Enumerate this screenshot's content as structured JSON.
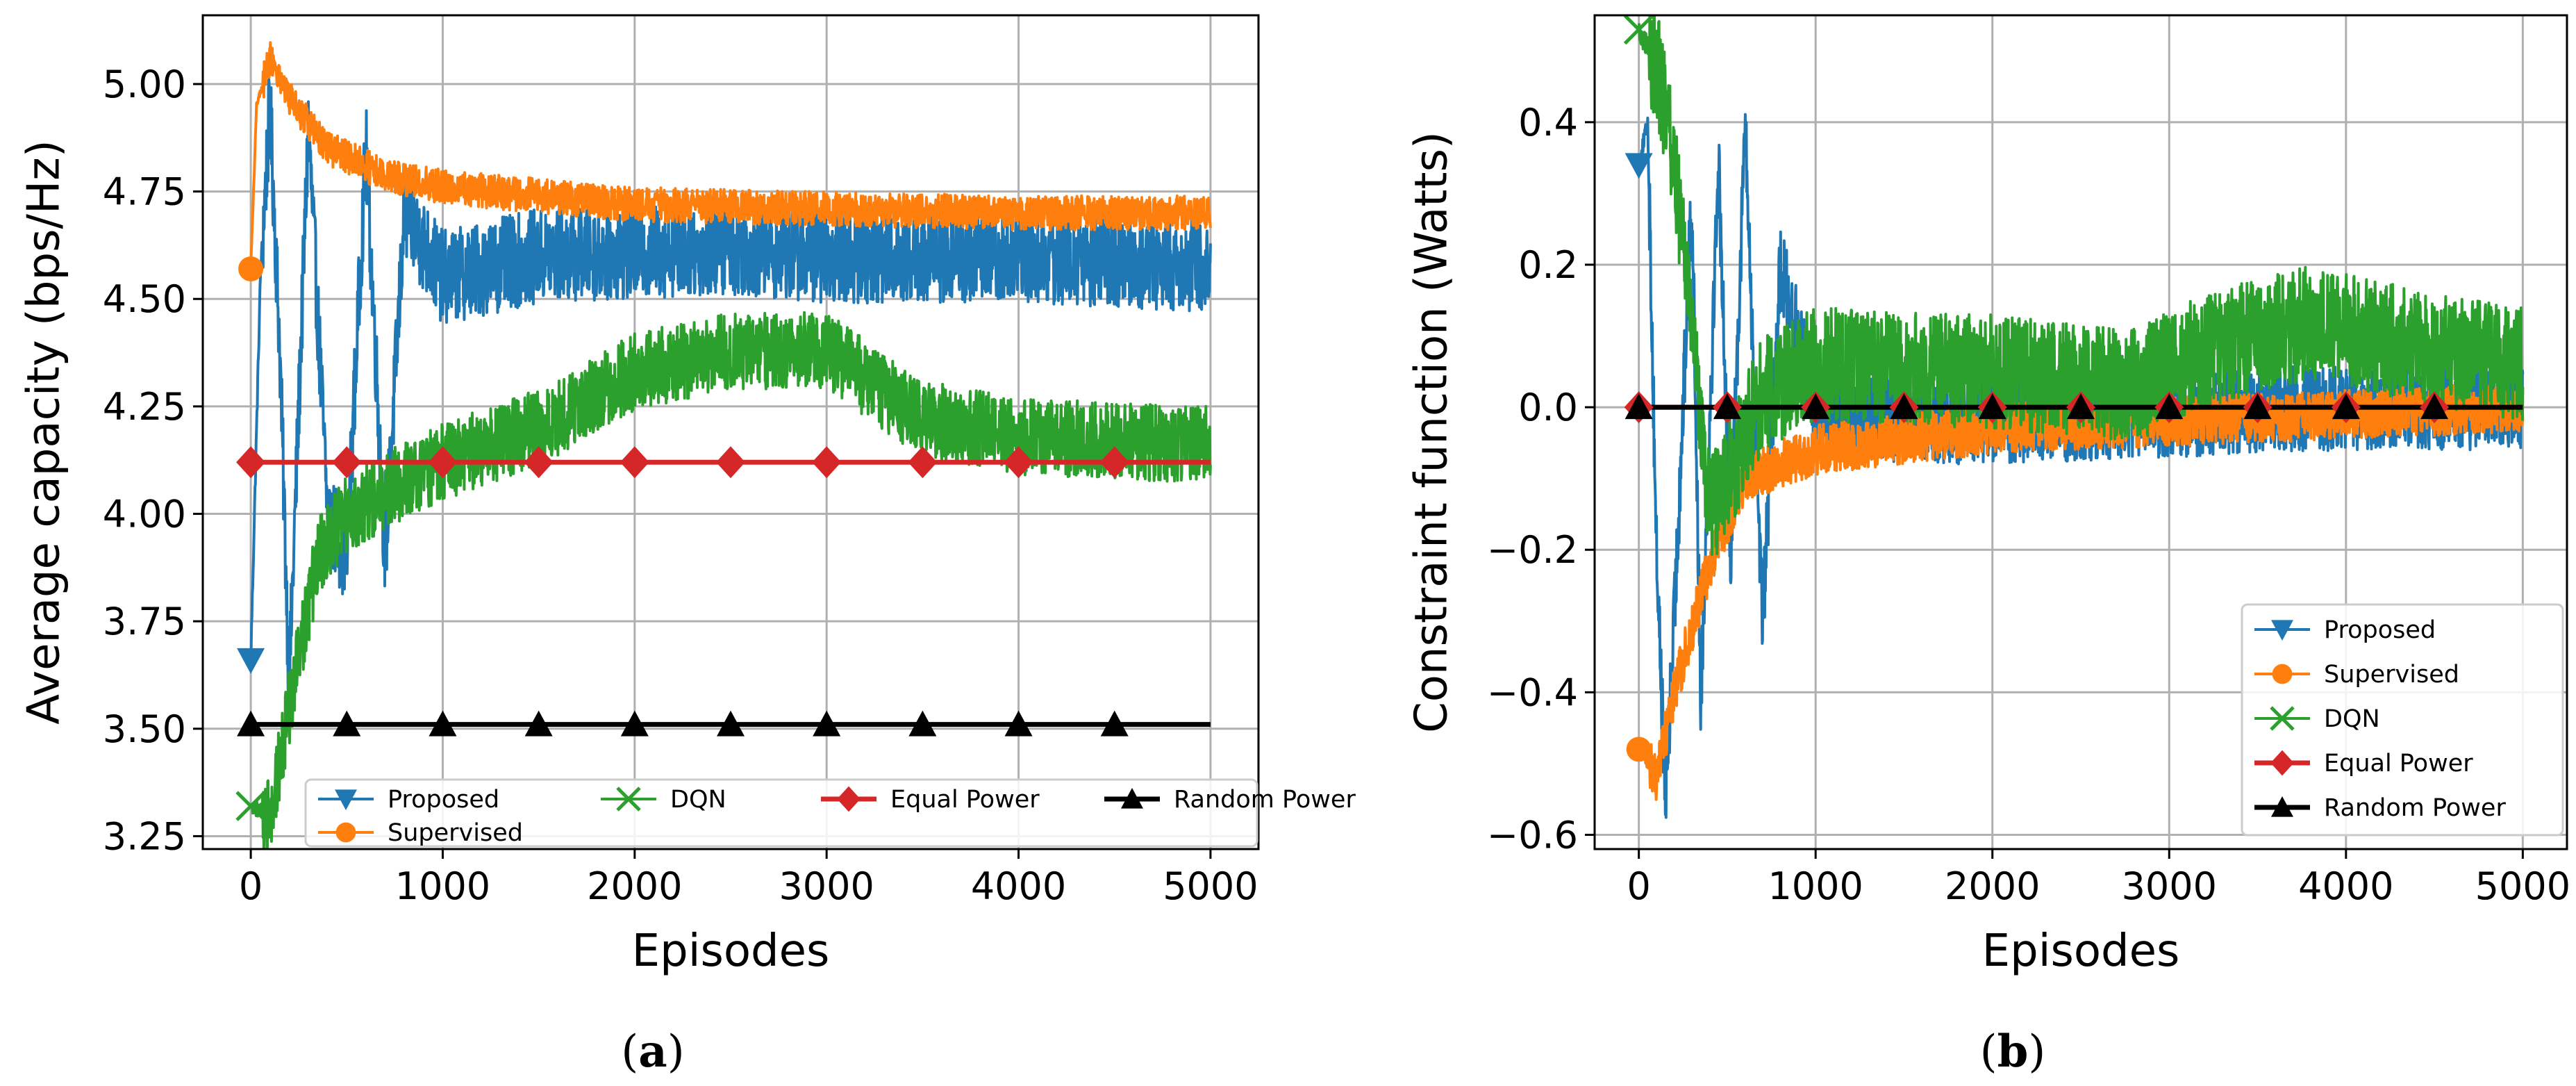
{
  "chart_data": [
    {
      "type": "line",
      "panel_label": "(a)",
      "title": "",
      "xlabel": "Episodes",
      "ylabel": "Average capacity (bps/Hz)",
      "xlim": [
        -250,
        5250
      ],
      "ylim": [
        3.22,
        5.16
      ],
      "xticks": [
        0,
        1000,
        2000,
        3000,
        4000,
        5000
      ],
      "xtick_labels": [
        "0",
        "1000",
        "2000",
        "3000",
        "4000",
        "5000"
      ],
      "yticks": [
        3.25,
        3.5,
        3.75,
        4.0,
        4.25,
        4.5,
        4.75,
        5.0
      ],
      "ytick_labels": [
        "3.25",
        "3.50",
        "3.75",
        "4.00",
        "4.25",
        "4.50",
        "4.75",
        "5.00"
      ],
      "grid": true,
      "legend_position": "bottom",
      "legend_columns": 4,
      "series": [
        {
          "name": "Proposed",
          "color": "#1f77b4",
          "marker": "triangle-down",
          "markevery": 500,
          "approx": [
            [
              0,
              3.66
            ],
            [
              50,
              4.55
            ],
            [
              100,
              4.95
            ],
            [
              150,
              4.4
            ],
            [
              200,
              3.6
            ],
            [
              300,
              4.9
            ],
            [
              400,
              4.0
            ],
            [
              500,
              3.9
            ],
            [
              600,
              4.85
            ],
            [
              700,
              3.9
            ],
            [
              800,
              4.7
            ],
            [
              1000,
              4.55
            ],
            [
              1500,
              4.6
            ],
            [
              2500,
              4.62
            ],
            [
              3000,
              4.6
            ],
            [
              4000,
              4.6
            ],
            [
              5000,
              4.58
            ]
          ],
          "noise": 0.11
        },
        {
          "name": "Supervised",
          "color": "#ff7f0e",
          "marker": "circle",
          "markevery": 500,
          "approx": [
            [
              0,
              4.57
            ],
            [
              30,
              4.95
            ],
            [
              100,
              5.06
            ],
            [
              200,
              4.97
            ],
            [
              400,
              4.85
            ],
            [
              700,
              4.79
            ],
            [
              1000,
              4.76
            ],
            [
              2000,
              4.72
            ],
            [
              3000,
              4.71
            ],
            [
              4000,
              4.7
            ],
            [
              5000,
              4.7
            ]
          ],
          "noise": 0.04
        },
        {
          "name": "DQN",
          "color": "#2ca02c",
          "marker": "x",
          "markevery": 500,
          "approx": [
            [
              0,
              3.32
            ],
            [
              100,
              3.3
            ],
            [
              200,
              3.55
            ],
            [
              350,
              3.9
            ],
            [
              500,
              4.0
            ],
            [
              800,
              4.08
            ],
            [
              1000,
              4.12
            ],
            [
              1500,
              4.2
            ],
            [
              2000,
              4.33
            ],
            [
              2500,
              4.38
            ],
            [
              3000,
              4.38
            ],
            [
              3500,
              4.22
            ],
            [
              4000,
              4.18
            ],
            [
              5000,
              4.16
            ]
          ],
          "noise": 0.09
        },
        {
          "name": "Equal Power",
          "color": "#d62728",
          "marker": "diamond",
          "markevery": 500,
          "values_constant": 4.12
        },
        {
          "name": "Random Power",
          "color": "#000000",
          "marker": "triangle-up",
          "markevery": 500,
          "values_constant": 3.51
        }
      ]
    },
    {
      "type": "line",
      "panel_label": "(b)",
      "title": "",
      "xlabel": "Episodes",
      "ylabel": "Constraint function (Watts)",
      "xlim": [
        -250,
        5250
      ],
      "ylim": [
        -0.62,
        0.55
      ],
      "xticks": [
        0,
        1000,
        2000,
        3000,
        4000,
        5000
      ],
      "xtick_labels": [
        "0",
        "1000",
        "2000",
        "3000",
        "4000",
        "5000"
      ],
      "yticks": [
        -0.6,
        -0.4,
        -0.2,
        0.0,
        0.2,
        0.4
      ],
      "ytick_labels": [
        "−0.6",
        "−0.4",
        "−0.2",
        "0.0",
        "0.2",
        "0.4"
      ],
      "grid": true,
      "legend_position": "lower right",
      "legend_columns": 1,
      "series": [
        {
          "name": "Proposed",
          "color": "#1f77b4",
          "marker": "triangle-down",
          "markevery": 500,
          "approx": [
            [
              0,
              0.34
            ],
            [
              50,
              0.4
            ],
            [
              100,
              -0.2
            ],
            [
              150,
              -0.55
            ],
            [
              200,
              -0.3
            ],
            [
              300,
              0.3
            ],
            [
              350,
              -0.4
            ],
            [
              450,
              0.35
            ],
            [
              520,
              -0.2
            ],
            [
              600,
              0.4
            ],
            [
              700,
              -0.3
            ],
            [
              800,
              0.2
            ],
            [
              1000,
              0.0
            ],
            [
              1500,
              -0.02
            ],
            [
              2000,
              -0.02
            ],
            [
              3000,
              -0.01
            ],
            [
              4000,
              0.0
            ],
            [
              5000,
              0.0
            ]
          ],
          "noise": 0.06
        },
        {
          "name": "Supervised",
          "color": "#ff7f0e",
          "marker": "circle",
          "markevery": 500,
          "approx": [
            [
              0,
              -0.48
            ],
            [
              100,
              -0.52
            ],
            [
              200,
              -0.4
            ],
            [
              400,
              -0.22
            ],
            [
              600,
              -0.1
            ],
            [
              1000,
              -0.06
            ],
            [
              2000,
              -0.03
            ],
            [
              3000,
              -0.02
            ],
            [
              4000,
              -0.01
            ],
            [
              5000,
              0.0
            ]
          ],
          "noise": 0.035
        },
        {
          "name": "DQN",
          "color": "#2ca02c",
          "marker": "x",
          "markevery": 500,
          "approx": [
            [
              0,
              0.53
            ],
            [
              100,
              0.48
            ],
            [
              200,
              0.35
            ],
            [
              300,
              0.1
            ],
            [
              400,
              -0.15
            ],
            [
              500,
              -0.1
            ],
            [
              700,
              0.02
            ],
            [
              1000,
              0.06
            ],
            [
              2000,
              0.05
            ],
            [
              2800,
              0.03
            ],
            [
              3200,
              0.08
            ],
            [
              3800,
              0.12
            ],
            [
              4500,
              0.08
            ],
            [
              5000,
              0.06
            ]
          ],
          "noise": 0.08
        },
        {
          "name": "Equal Power",
          "color": "#d62728",
          "marker": "diamond",
          "markevery": 500,
          "values_constant": 0.0
        },
        {
          "name": "Random Power",
          "color": "#000000",
          "marker": "triangle-up",
          "markevery": 500,
          "values_constant": 0.0
        }
      ]
    }
  ]
}
